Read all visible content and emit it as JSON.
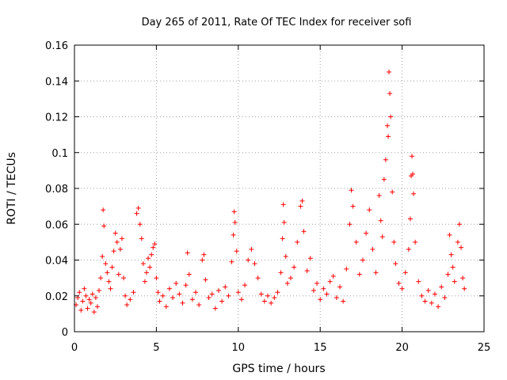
{
  "chart_data": {
    "type": "scatter",
    "title": "Day 265 of 2011, Rate Of TEC Index for receiver sofi",
    "xlabel": "GPS time / hours",
    "ylabel": "ROTI / TECUs",
    "xlim": [
      0,
      25
    ],
    "ylim": [
      0,
      0.16
    ],
    "x_ticks": [
      "0",
      "5",
      "10",
      "15",
      "20",
      "25"
    ],
    "y_ticks": [
      "0",
      "0.02",
      "0.04",
      "0.06",
      "0.08",
      "0.1",
      "0.12",
      "0.14",
      "0.16"
    ],
    "grid": true,
    "marker": "+",
    "color": "#ff0000",
    "series": [
      {
        "points": [
          [
            0.1,
            0.015
          ],
          [
            0.2,
            0.019
          ],
          [
            0.3,
            0.022
          ],
          [
            0.4,
            0.012
          ],
          [
            0.5,
            0.017
          ],
          [
            0.6,
            0.024
          ],
          [
            0.7,
            0.02
          ],
          [
            0.8,
            0.013
          ],
          [
            0.9,
            0.018
          ],
          [
            1.0,
            0.016
          ],
          [
            1.1,
            0.021
          ],
          [
            1.2,
            0.011
          ],
          [
            1.3,
            0.019
          ],
          [
            1.4,
            0.014
          ],
          [
            1.5,
            0.023
          ],
          [
            1.6,
            0.03
          ],
          [
            1.7,
            0.042
          ],
          [
            1.75,
            0.068
          ],
          [
            1.8,
            0.059
          ],
          [
            1.9,
            0.038
          ],
          [
            2.0,
            0.033
          ],
          [
            2.1,
            0.028
          ],
          [
            2.2,
            0.024
          ],
          [
            2.3,
            0.036
          ],
          [
            2.4,
            0.045
          ],
          [
            2.5,
            0.055
          ],
          [
            2.6,
            0.05
          ],
          [
            2.7,
            0.032
          ],
          [
            2.8,
            0.046
          ],
          [
            2.9,
            0.052
          ],
          [
            3.0,
            0.03
          ],
          [
            3.1,
            0.02
          ],
          [
            3.2,
            0.015
          ],
          [
            3.4,
            0.018
          ],
          [
            3.6,
            0.022
          ],
          [
            3.8,
            0.066
          ],
          [
            3.9,
            0.069
          ],
          [
            4.0,
            0.06
          ],
          [
            4.1,
            0.052
          ],
          [
            4.2,
            0.038
          ],
          [
            4.3,
            0.028
          ],
          [
            4.4,
            0.033
          ],
          [
            4.5,
            0.041
          ],
          [
            4.6,
            0.036
          ],
          [
            4.7,
            0.043
          ],
          [
            4.8,
            0.047
          ],
          [
            4.9,
            0.049
          ],
          [
            5.0,
            0.03
          ],
          [
            5.1,
            0.022
          ],
          [
            5.2,
            0.017
          ],
          [
            5.4,
            0.02
          ],
          [
            5.6,
            0.014
          ],
          [
            5.8,
            0.024
          ],
          [
            6.0,
            0.019
          ],
          [
            6.2,
            0.027
          ],
          [
            6.4,
            0.021
          ],
          [
            6.6,
            0.016
          ],
          [
            6.8,
            0.026
          ],
          [
            6.9,
            0.044
          ],
          [
            7.0,
            0.032
          ],
          [
            7.2,
            0.018
          ],
          [
            7.4,
            0.022
          ],
          [
            7.6,
            0.015
          ],
          [
            7.8,
            0.04
          ],
          [
            7.9,
            0.043
          ],
          [
            8.0,
            0.029
          ],
          [
            8.2,
            0.019
          ],
          [
            8.4,
            0.021
          ],
          [
            8.6,
            0.013
          ],
          [
            8.8,
            0.023
          ],
          [
            9.0,
            0.017
          ],
          [
            9.2,
            0.025
          ],
          [
            9.4,
            0.02
          ],
          [
            9.6,
            0.039
          ],
          [
            9.7,
            0.054
          ],
          [
            9.75,
            0.067
          ],
          [
            9.8,
            0.061
          ],
          [
            9.9,
            0.045
          ],
          [
            10.0,
            0.022
          ],
          [
            10.2,
            0.018
          ],
          [
            10.4,
            0.026
          ],
          [
            10.6,
            0.04
          ],
          [
            10.8,
            0.046
          ],
          [
            11.0,
            0.038
          ],
          [
            11.2,
            0.03
          ],
          [
            11.4,
            0.021
          ],
          [
            11.6,
            0.017
          ],
          [
            11.8,
            0.02
          ],
          [
            12.0,
            0.016
          ],
          [
            12.2,
            0.019
          ],
          [
            12.4,
            0.022
          ],
          [
            12.6,
            0.033
          ],
          [
            12.7,
            0.052
          ],
          [
            12.75,
            0.071
          ],
          [
            12.8,
            0.061
          ],
          [
            12.9,
            0.042
          ],
          [
            13.0,
            0.027
          ],
          [
            13.2,
            0.03
          ],
          [
            13.4,
            0.036
          ],
          [
            13.6,
            0.05
          ],
          [
            13.8,
            0.07
          ],
          [
            13.9,
            0.073
          ],
          [
            14.0,
            0.056
          ],
          [
            14.2,
            0.034
          ],
          [
            14.4,
            0.041
          ],
          [
            14.6,
            0.023
          ],
          [
            14.8,
            0.027
          ],
          [
            15.0,
            0.018
          ],
          [
            15.2,
            0.024
          ],
          [
            15.4,
            0.021
          ],
          [
            15.6,
            0.028
          ],
          [
            15.8,
            0.031
          ],
          [
            16.0,
            0.019
          ],
          [
            16.2,
            0.025
          ],
          [
            16.4,
            0.017
          ],
          [
            16.6,
            0.035
          ],
          [
            16.8,
            0.06
          ],
          [
            16.9,
            0.079
          ],
          [
            17.0,
            0.07
          ],
          [
            17.2,
            0.05
          ],
          [
            17.4,
            0.032
          ],
          [
            17.6,
            0.04
          ],
          [
            17.8,
            0.055
          ],
          [
            18.0,
            0.068
          ],
          [
            18.2,
            0.046
          ],
          [
            18.4,
            0.033
          ],
          [
            18.6,
            0.076
          ],
          [
            18.7,
            0.062
          ],
          [
            18.8,
            0.053
          ],
          [
            18.9,
            0.085
          ],
          [
            19.0,
            0.096
          ],
          [
            19.1,
            0.115
          ],
          [
            19.15,
            0.109
          ],
          [
            19.2,
            0.145
          ],
          [
            19.25,
            0.133
          ],
          [
            19.3,
            0.12
          ],
          [
            19.4,
            0.078
          ],
          [
            19.5,
            0.05
          ],
          [
            19.6,
            0.038
          ],
          [
            19.8,
            0.027
          ],
          [
            20.0,
            0.024
          ],
          [
            20.2,
            0.033
          ],
          [
            20.4,
            0.046
          ],
          [
            20.5,
            0.063
          ],
          [
            20.55,
            0.087
          ],
          [
            20.6,
            0.098
          ],
          [
            20.65,
            0.088
          ],
          [
            20.7,
            0.077
          ],
          [
            20.8,
            0.05
          ],
          [
            21.0,
            0.028
          ],
          [
            21.2,
            0.02
          ],
          [
            21.4,
            0.017
          ],
          [
            21.6,
            0.023
          ],
          [
            21.8,
            0.016
          ],
          [
            22.0,
            0.021
          ],
          [
            22.2,
            0.014
          ],
          [
            22.4,
            0.025
          ],
          [
            22.6,
            0.019
          ],
          [
            22.8,
            0.032
          ],
          [
            22.9,
            0.054
          ],
          [
            23.0,
            0.043
          ],
          [
            23.1,
            0.036
          ],
          [
            23.2,
            0.028
          ],
          [
            23.4,
            0.05
          ],
          [
            23.5,
            0.06
          ],
          [
            23.6,
            0.047
          ],
          [
            23.7,
            0.03
          ],
          [
            23.8,
            0.024
          ]
        ]
      }
    ]
  }
}
